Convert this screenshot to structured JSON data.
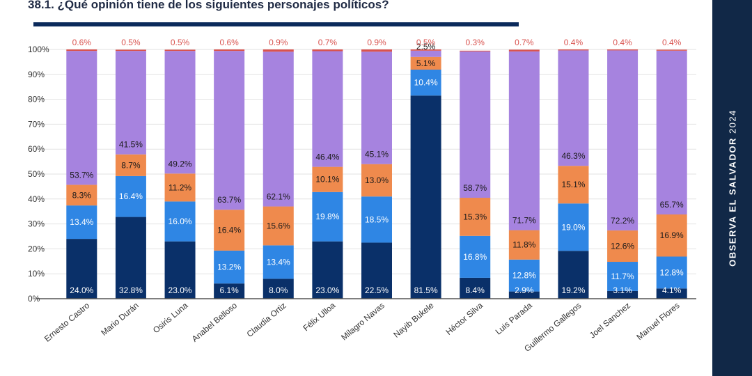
{
  "title": "38.1. ¿Qué opinión tiene de los siguientes personajes políticos?",
  "side_label": {
    "brand": "OBSERVA EL SALVADOR",
    "year": "2024"
  },
  "colors": {
    "title_rule": "#0b2a5b",
    "side_panel": "#112847",
    "grid": "#e2e2e2",
    "axis": "#555555"
  },
  "chart_data": {
    "type": "bar",
    "stacked": true,
    "categories": [
      "Ernesto Castro",
      "Mario Durán",
      "Osiris Luna",
      "Anabel Belloso",
      "Claudia Ortiz",
      "Félix Ulloa",
      "Milagro Navas",
      "Nayib Bukele",
      "Héctor Silva",
      "Luis Parada",
      "Guillermo Gallegos",
      "Joel Sanchez",
      "Manuel Flores"
    ],
    "ylim": [
      0,
      100
    ],
    "yticks": [
      "0%",
      "10%",
      "20%",
      "30%",
      "40%",
      "50%",
      "60%",
      "70%",
      "80%",
      "90%",
      "100%"
    ],
    "grid": true,
    "series": [
      {
        "color": "#0a3069",
        "values": [
          24.0,
          32.8,
          23.0,
          6.1,
          8.0,
          23.0,
          22.5,
          81.5,
          8.4,
          2.9,
          19.2,
          3.1,
          4.1
        ],
        "labels": [
          "24.0%",
          "32.8%",
          "23.0%",
          "6.1%",
          "8.0%",
          "23.0%",
          "22.5%",
          "81.5%",
          "8.4%",
          "2.9%",
          "19.2%",
          "3.1%",
          "4.1%"
        ]
      },
      {
        "color": "#2f86e4",
        "values": [
          13.4,
          16.4,
          16.0,
          13.2,
          13.4,
          19.8,
          18.5,
          10.4,
          16.8,
          12.8,
          19.0,
          11.7,
          12.8
        ],
        "labels": [
          "13.4%",
          "16.4%",
          "16.0%",
          "13.2%",
          "13.4%",
          "19.8%",
          "18.5%",
          "10.4%",
          "16.8%",
          "12.8%",
          "19.0%",
          "11.7%",
          "12.8%"
        ]
      },
      {
        "color": "#ef8a4d",
        "values": [
          8.3,
          8.7,
          11.2,
          16.4,
          15.6,
          10.1,
          13.0,
          5.1,
          15.3,
          11.8,
          15.1,
          12.6,
          16.9
        ],
        "labels": [
          "8.3%",
          "8.7%",
          "11.2%",
          "16.4%",
          "15.6%",
          "10.1%",
          "13.0%",
          "5.1%",
          "15.3%",
          "11.8%",
          "15.1%",
          "12.6%",
          "16.9%"
        ]
      },
      {
        "color": "#a683df",
        "values": [
          53.7,
          41.5,
          49.2,
          63.7,
          62.1,
          46.4,
          45.1,
          2.5,
          58.7,
          71.7,
          46.3,
          72.2,
          65.7
        ],
        "labels": [
          "53.7%",
          "41.5%",
          "49.2%",
          "63.7%",
          "62.1%",
          "46.4%",
          "45.1%",
          "2.5%",
          "58.7%",
          "71.7%",
          "46.3%",
          "72.2%",
          "65.7%"
        ]
      },
      {
        "color": "#d9534f",
        "values": [
          0.6,
          0.5,
          0.5,
          0.6,
          0.9,
          0.7,
          0.9,
          0.5,
          0.3,
          0.7,
          0.4,
          0.4,
          0.4
        ],
        "labels": [
          "0.6%",
          "0.5%",
          "0.5%",
          "0.6%",
          "0.9%",
          "0.7%",
          "0.9%",
          "0.5%",
          "0.3%",
          "0.7%",
          "0.4%",
          "0.4%",
          "0.4%"
        ]
      }
    ]
  }
}
